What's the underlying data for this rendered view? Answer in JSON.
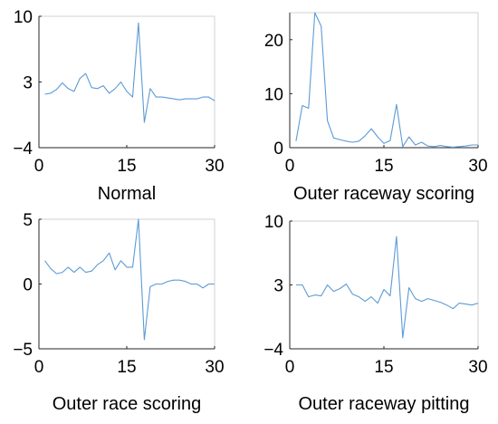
{
  "chart_data": [
    {
      "type": "line",
      "caption": "Normal",
      "xlim": [
        0,
        30
      ],
      "ylim": [
        -4,
        10
      ],
      "xticks": [
        0,
        15,
        30
      ],
      "yticks": [
        -4,
        3,
        10
      ],
      "xtick_labels": [
        "0",
        "15",
        "30"
      ],
      "ytick_labels": [
        "−4",
        "3",
        "10"
      ],
      "line_color": "#5b9bd5",
      "x": [
        1,
        2,
        3,
        4,
        5,
        6,
        7,
        8,
        9,
        10,
        11,
        12,
        13,
        14,
        15,
        16,
        17,
        18,
        19,
        20,
        21,
        22,
        23,
        24,
        25,
        26,
        27,
        28,
        29,
        30
      ],
      "y": [
        1.7,
        1.8,
        2.2,
        2.9,
        2.3,
        2.0,
        3.4,
        3.9,
        2.4,
        2.3,
        2.6,
        1.8,
        2.3,
        3.0,
        2.0,
        1.4,
        9.3,
        -1.3,
        2.3,
        1.4,
        1.4,
        1.3,
        1.2,
        1.1,
        1.2,
        1.2,
        1.2,
        1.4,
        1.4,
        1.0
      ]
    },
    {
      "type": "line",
      "caption": "Outer raceway scoring",
      "xlim": [
        0,
        30
      ],
      "ylim": [
        0,
        25
      ],
      "xticks": [
        0,
        15,
        30
      ],
      "yticks": [
        0,
        10,
        20
      ],
      "xtick_labels": [
        "0",
        "15",
        "30"
      ],
      "ytick_labels": [
        "0",
        "10",
        "20"
      ],
      "line_color": "#5b9bd5",
      "x": [
        1,
        2,
        3,
        4,
        5,
        6,
        7,
        8,
        9,
        10,
        11,
        12,
        13,
        14,
        15,
        16,
        17,
        18,
        19,
        20,
        21,
        22,
        23,
        24,
        25,
        26,
        27,
        28,
        29,
        30
      ],
      "y": [
        1.2,
        7.8,
        7.3,
        25.0,
        22.5,
        5.0,
        1.8,
        1.5,
        1.2,
        1.0,
        1.2,
        2.2,
        3.5,
        2.0,
        0.8,
        1.3,
        8.0,
        0.2,
        2.0,
        0.5,
        1.0,
        0.3,
        0.2,
        0.4,
        0.2,
        0.1,
        0.2,
        0.3,
        0.5,
        0.5
      ]
    },
    {
      "type": "line",
      "caption": "Outer race scoring",
      "xlim": [
        0,
        30
      ],
      "ylim": [
        -5,
        5
      ],
      "xticks": [
        0,
        15,
        30
      ],
      "yticks": [
        -5,
        0,
        5
      ],
      "xtick_labels": [
        "0",
        "15",
        "30"
      ],
      "ytick_labels": [
        "−5",
        "0",
        "5"
      ],
      "line_color": "#5b9bd5",
      "x": [
        1,
        2,
        3,
        4,
        5,
        6,
        7,
        8,
        9,
        10,
        11,
        12,
        13,
        14,
        15,
        16,
        17,
        18,
        19,
        20,
        21,
        22,
        23,
        24,
        25,
        26,
        27,
        28,
        29,
        30
      ],
      "y": [
        1.8,
        1.2,
        0.8,
        0.9,
        1.3,
        0.9,
        1.3,
        0.9,
        1.0,
        1.5,
        1.8,
        2.4,
        1.1,
        1.8,
        1.3,
        1.3,
        5.0,
        -4.3,
        -0.2,
        0.0,
        0.0,
        0.2,
        0.3,
        0.3,
        0.2,
        0.0,
        0.0,
        -0.3,
        0.0,
        0.0
      ]
    },
    {
      "type": "line",
      "caption": "Outer raceway pitting",
      "xlim": [
        0,
        30
      ],
      "ylim": [
        -4,
        10
      ],
      "xticks": [
        0,
        15,
        30
      ],
      "yticks": [
        -4,
        3,
        10
      ],
      "xtick_labels": [
        "0",
        "15",
        "30"
      ],
      "ytick_labels": [
        "−4",
        "3",
        "10"
      ],
      "line_color": "#5b9bd5",
      "x": [
        1,
        2,
        3,
        4,
        5,
        6,
        7,
        8,
        9,
        10,
        11,
        12,
        13,
        14,
        15,
        16,
        17,
        18,
        19,
        20,
        21,
        22,
        23,
        24,
        25,
        26,
        27,
        28,
        29,
        30
      ],
      "y": [
        3.0,
        3.0,
        1.7,
        1.9,
        1.8,
        3.0,
        2.3,
        2.6,
        3.1,
        2.0,
        1.7,
        1.2,
        1.7,
        1.0,
        2.5,
        1.8,
        8.3,
        -2.8,
        2.7,
        1.5,
        1.2,
        1.5,
        1.3,
        1.1,
        0.8,
        0.4,
        1.0,
        0.9,
        0.8,
        1.0
      ]
    }
  ]
}
